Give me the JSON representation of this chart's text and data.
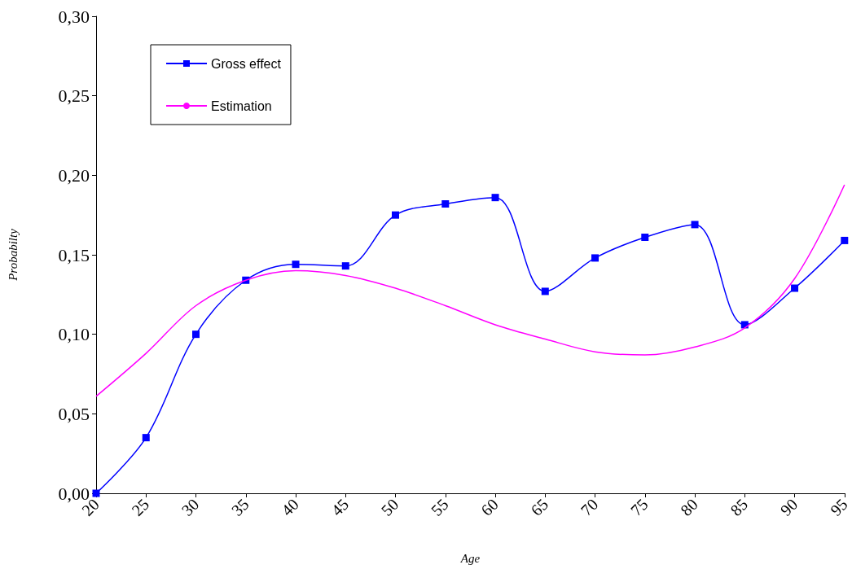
{
  "chart_data": {
    "type": "line",
    "xlabel": "Age",
    "ylabel": "Probabilty",
    "x": [
      20,
      25,
      30,
      35,
      40,
      45,
      50,
      55,
      60,
      65,
      70,
      75,
      80,
      85,
      90,
      95
    ],
    "series": [
      {
        "name": "Gross effect",
        "color": "#0000ff",
        "marker": "square",
        "values": [
          0,
          0.035,
          0.1,
          0.134,
          0.144,
          0.143,
          0.175,
          0.182,
          0.186,
          0.127,
          0.148,
          0.161,
          0.169,
          0.106,
          0.129,
          0.159
        ]
      },
      {
        "name": "Estimation",
        "color": "#ff00ff",
        "marker": "none",
        "values": [
          0.061,
          0.088,
          0.118,
          0.134,
          0.14,
          0.137,
          0.129,
          0.118,
          0.106,
          0.097,
          0.089,
          0.087,
          0.092,
          0.104,
          0.135,
          0.194
        ]
      }
    ],
    "xlim": [
      20,
      95
    ],
    "xticks": [
      20,
      25,
      30,
      35,
      40,
      45,
      50,
      55,
      60,
      65,
      70,
      75,
      80,
      85,
      90,
      95
    ],
    "ylim": [
      0,
      0.3
    ],
    "yticks": [
      {
        "value": 0,
        "label": "0,00"
      },
      {
        "value": 0.05,
        "label": "0,05"
      },
      {
        "value": 0.1,
        "label": "0,10"
      },
      {
        "value": 0.15,
        "label": "0,15"
      },
      {
        "value": 0.2,
        "label": "0,20"
      },
      {
        "value": 0.25,
        "label": "0,25"
      },
      {
        "value": 0.3,
        "label": "0,30"
      }
    ],
    "grid": false,
    "legend": "top left"
  }
}
